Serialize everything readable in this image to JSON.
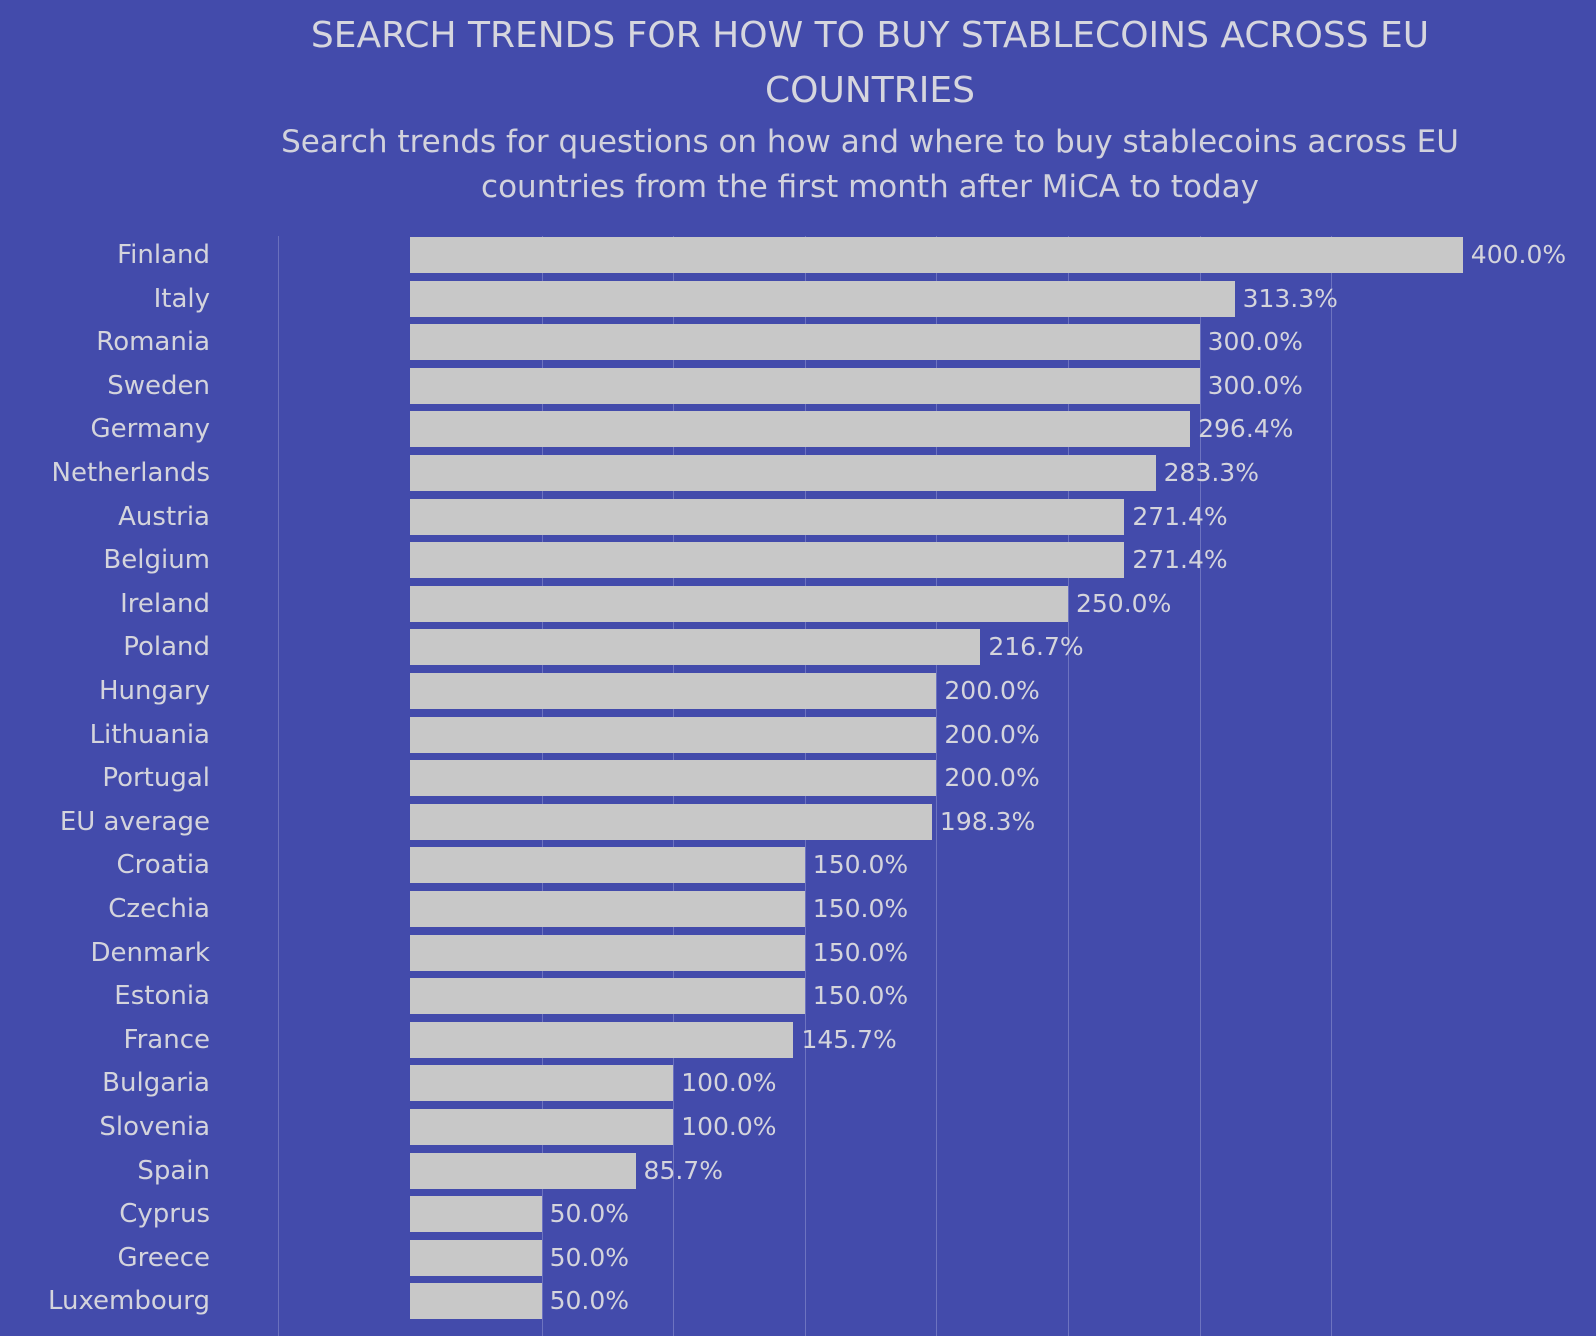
{
  "chart": {
    "title": "SEARCH TRENDS FOR HOW TO BUY STABLECOINS ACROSS EU COUNTRIES",
    "subtitle": "Search trends for questions on how and where to buy stablecoins across EU countries from the first month after MiCA to today"
  },
  "colors": {
    "background": "#434bab",
    "bar": "#c8c8c8",
    "text": "#d4d4dc"
  },
  "chart_data": {
    "type": "bar",
    "orientation": "horizontal",
    "title": "SEARCH TRENDS FOR HOW TO BUY STABLECOINS ACROSS EU COUNTRIES",
    "subtitle": "Search trends for questions on how and where to buy stablecoins across EU countries from the first month after MiCA to today",
    "xlabel": "",
    "ylabel": "",
    "xlim": [
      0,
      400
    ],
    "grid": true,
    "grid_step": 50,
    "categories": [
      "Finland",
      "Italy",
      "Romania",
      "Sweden",
      "Germany",
      "Netherlands",
      "Austria",
      "Belgium",
      "Ireland",
      "Poland",
      "Hungary",
      "Lithuania",
      "Portugal",
      "EU average",
      "Croatia",
      "Czechia",
      "Denmark",
      "Estonia",
      "France",
      "Bulgaria",
      "Slovenia",
      "Spain",
      "Cyprus",
      "Greece",
      "Luxembourg"
    ],
    "values": [
      400.0,
      313.3,
      300.0,
      300.0,
      296.4,
      283.3,
      271.4,
      271.4,
      250.0,
      216.7,
      200.0,
      200.0,
      200.0,
      198.3,
      150.0,
      150.0,
      150.0,
      150.0,
      145.7,
      100.0,
      100.0,
      85.7,
      50.0,
      50.0,
      50.0
    ],
    "value_labels": [
      "400.0%",
      "313.3%",
      "300.0%",
      "300.0%",
      "296.4%",
      "283.3%",
      "271.4%",
      "271.4%",
      "250.0%",
      "216.7%",
      "200.0%",
      "200.0%",
      "200.0%",
      "198.3%",
      "150.0%",
      "150.0%",
      "150.0%",
      "150.0%",
      "145.7%",
      "100.0%",
      "100.0%",
      "85.7%",
      "50.0%",
      "50.0%",
      "50.0%"
    ]
  }
}
